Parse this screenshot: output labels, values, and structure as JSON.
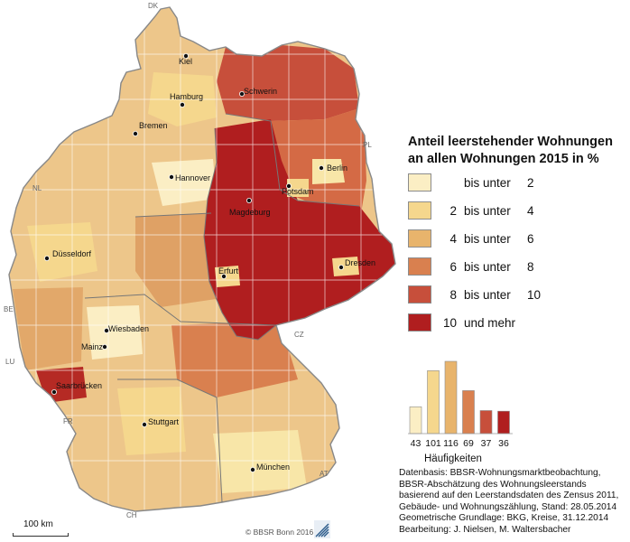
{
  "legend": {
    "title_line1": "Anteil leerstehender Wohnungen",
    "title_line2": "an allen Wohnungen 2015 in %",
    "classes": [
      {
        "from": "",
        "text": "bis unter",
        "to": "2",
        "color": "#fbeec4"
      },
      {
        "from": "2",
        "text": "bis unter",
        "to": "4",
        "color": "#f5d78d"
      },
      {
        "from": "4",
        "text": "bis unter",
        "to": "6",
        "color": "#e8b46c"
      },
      {
        "from": "6",
        "text": "bis unter",
        "to": "8",
        "color": "#d9804f"
      },
      {
        "from": "8",
        "text": "bis unter",
        "to": "10",
        "color": "#c74f3b"
      },
      {
        "from": "10",
        "text": "und mehr",
        "to": "",
        "color": "#b01e1f"
      }
    ]
  },
  "histogram": {
    "caption": "Häufigkeiten",
    "counts": [
      43,
      101,
      116,
      69,
      37,
      36
    ],
    "labels": [
      "43",
      "101",
      "116",
      "69",
      "37",
      "36"
    ]
  },
  "cities": [
    {
      "name": "Kiel"
    },
    {
      "name": "Schwerin"
    },
    {
      "name": "Hamburg"
    },
    {
      "name": "Bremen"
    },
    {
      "name": "Berlin"
    },
    {
      "name": "Hannover"
    },
    {
      "name": "Potsdam"
    },
    {
      "name": "Magdeburg"
    },
    {
      "name": "Düsseldorf"
    },
    {
      "name": "Erfurt"
    },
    {
      "name": "Dresden"
    },
    {
      "name": "Wiesbaden"
    },
    {
      "name": "Mainz"
    },
    {
      "name": "Saarbrücken"
    },
    {
      "name": "Stuttgart"
    },
    {
      "name": "München"
    }
  ],
  "countries": [
    "DK",
    "PL",
    "NL",
    "BE",
    "LU",
    "FR",
    "CZ",
    "AT",
    "CH"
  ],
  "source_lines": [
    "Datenbasis: BBSR-Wohnungsmarktbeobachtung,",
    "BBSR-Abschätzung des Wohnungsleerstands",
    "basierend auf den Leerstandsdaten des Zensus 2011,",
    "Gebäude- und Wohnungszählung, Stand: 28.05.2014",
    "Geometrische Grundlage: BKG, Kreise, 31.12.2014",
    "Bearbeitung: J. Nielsen, M. Waltersbacher"
  ],
  "scale": "100 km",
  "copyright": "© BBSR Bonn 2016"
}
